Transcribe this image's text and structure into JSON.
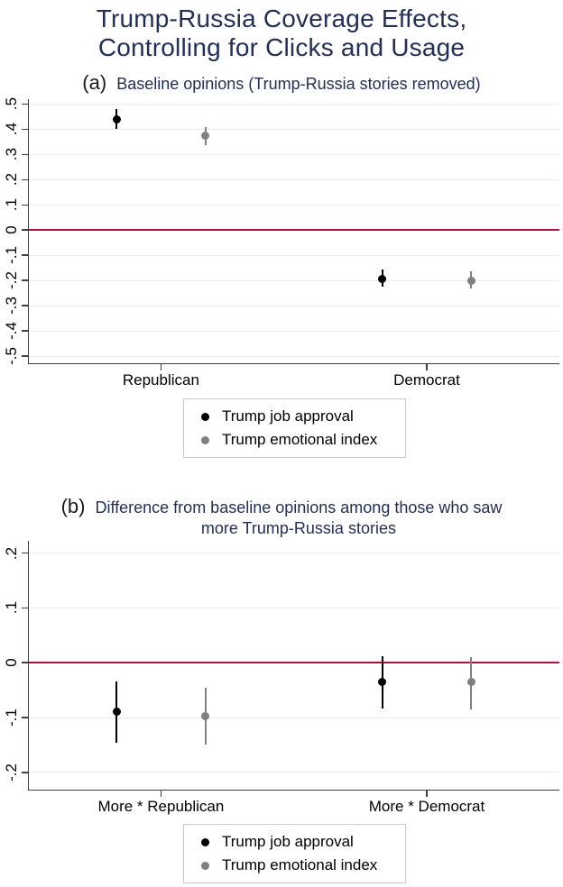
{
  "title": {
    "line1": "Trump-Russia Coverage Effects,",
    "line2": "Controlling for Clicks and Usage"
  },
  "colors": {
    "heading_navy": "#232f55",
    "zero_line": "#b11236",
    "gridline": "#e7eef1",
    "axis": "#3f3f3f",
    "black_series": "#000000",
    "gray_series": "#808080",
    "legend_border": "#c9c9c9"
  },
  "legend": {
    "position": "bottom-center",
    "items": [
      {
        "label": "Trump job approval",
        "color": "#000000"
      },
      {
        "label": "Trump emotional index",
        "color": "#808080"
      }
    ]
  },
  "chart_data": [
    {
      "type": "scatter",
      "error_bars": true,
      "tag": "(a)",
      "title": "Baseline opinions (Trump-Russia stories removed)",
      "subtitle_lines": [
        "Baseline opinions (Trump-Russia stories removed)"
      ],
      "xlabel": "",
      "ylabel": "",
      "categories": [
        "Republican",
        "Democrat"
      ],
      "cat_x_pct": [
        24.9,
        75.0
      ],
      "series_offset_pct": 8.4,
      "ylim": [
        -0.528,
        0.519
      ],
      "zero_line": 0,
      "grid": true,
      "yticks": [
        {
          "v": 0.5,
          "label": ".5"
        },
        {
          "v": 0.4,
          "label": ".4"
        },
        {
          "v": 0.3,
          "label": ".3"
        },
        {
          "v": 0.2,
          "label": ".2"
        },
        {
          "v": 0.1,
          "label": ".1"
        },
        {
          "v": 0,
          "label": "0"
        },
        {
          "v": -0.1,
          "label": "-.1"
        },
        {
          "v": -0.2,
          "label": "-.2"
        },
        {
          "v": -0.3,
          "label": "-.3"
        },
        {
          "v": -0.4,
          "label": "-.4"
        },
        {
          "v": -0.5,
          "label": "-.5"
        }
      ],
      "series": [
        {
          "name": "Trump job approval",
          "color": "#000000",
          "points": [
            {
              "category": "Republican",
              "est": 0.44,
              "lo": 0.4,
              "hi": 0.48
            },
            {
              "category": "Democrat",
              "est": -0.195,
              "lo": -0.225,
              "hi": -0.157
            }
          ]
        },
        {
          "name": "Trump emotional index",
          "color": "#808080",
          "points": [
            {
              "category": "Republican",
              "est": 0.375,
              "lo": 0.335,
              "hi": 0.41
            },
            {
              "category": "Democrat",
              "est": -0.2,
              "lo": -0.232,
              "hi": -0.165
            }
          ]
        }
      ]
    },
    {
      "type": "scatter",
      "error_bars": true,
      "tag": "(b)",
      "title": "Difference from baseline opinions among those who saw more Trump-Russia stories",
      "subtitle_lines": [
        "Difference from baseline opinions among those who saw",
        "more Trump-Russia stories"
      ],
      "xlabel": "",
      "ylabel": "",
      "categories": [
        "More * Republican",
        "More * Democrat"
      ],
      "cat_x_pct": [
        24.9,
        75.0
      ],
      "series_offset_pct": 8.4,
      "ylim": [
        -0.2316,
        0.2225
      ],
      "zero_line": 0,
      "grid": true,
      "yticks": [
        {
          "v": 0.2,
          "label": ".2"
        },
        {
          "v": 0.1,
          "label": ".1"
        },
        {
          "v": 0,
          "label": "0"
        },
        {
          "v": -0.1,
          "label": "-.1"
        },
        {
          "v": -0.2,
          "label": "-.2"
        }
      ],
      "series": [
        {
          "name": "Trump job approval",
          "color": "#000000",
          "points": [
            {
              "category": "More * Republican",
              "est": -0.089,
              "lo": -0.146,
              "hi": -0.034
            },
            {
              "category": "More * Democrat",
              "est": -0.035,
              "lo": -0.084,
              "hi": 0.012
            }
          ]
        },
        {
          "name": "Trump emotional index",
          "color": "#808080",
          "points": [
            {
              "category": "More * Republican",
              "est": -0.097,
              "lo": -0.15,
              "hi": -0.045
            },
            {
              "category": "More * Democrat",
              "est": -0.035,
              "lo": -0.085,
              "hi": 0.01
            }
          ]
        }
      ]
    }
  ]
}
